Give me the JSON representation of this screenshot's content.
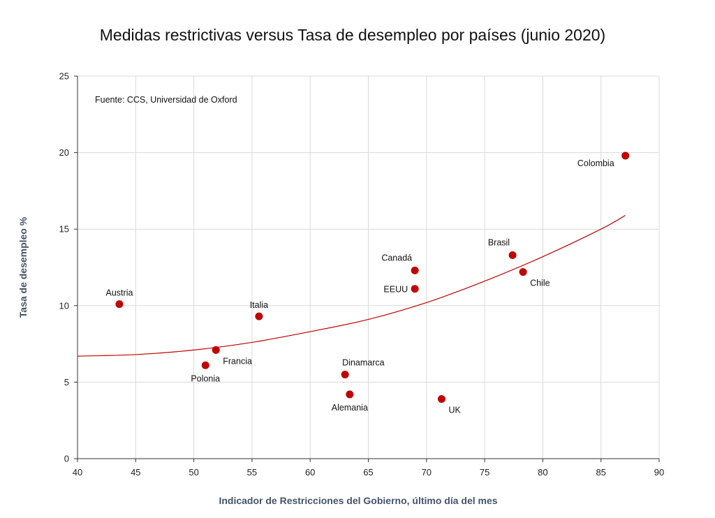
{
  "chart_data": {
    "type": "scatter",
    "title": "Medidas restrictivas versus Tasa de desempleo por países (junio 2020)",
    "xlabel": "Indicador de Restricciones del Gobierno, último día del mes",
    "ylabel": "Tasa de desempleo %",
    "annotation": "Fuente: CCS, Universidad de Oxford",
    "xlim": [
      40,
      90
    ],
    "ylim": [
      0,
      25
    ],
    "xticks": [
      "40",
      "45",
      "50",
      "55",
      "60",
      "65",
      "70",
      "75",
      "80",
      "85",
      "90"
    ],
    "yticks": [
      "0",
      "5",
      "10",
      "15",
      "20",
      "25"
    ],
    "grid": true,
    "point_color": "#c00000",
    "trend_color": "#c00000",
    "points": [
      {
        "label": "Austria",
        "x": 43.6,
        "y": 10.1,
        "label_pos": "above"
      },
      {
        "label": "Polonia",
        "x": 51.0,
        "y": 6.1,
        "label_pos": "below"
      },
      {
        "label": "Francia",
        "x": 51.9,
        "y": 7.1,
        "label_pos": "below-right"
      },
      {
        "label": "Italia",
        "x": 55.6,
        "y": 9.3,
        "label_pos": "above"
      },
      {
        "label": "Dinamarca",
        "x": 63.0,
        "y": 5.5,
        "label_pos": "above-right"
      },
      {
        "label": "Alemania",
        "x": 63.4,
        "y": 4.2,
        "label_pos": "below"
      },
      {
        "label": "Canadá",
        "x": 69.0,
        "y": 12.3,
        "label_pos": "above-left"
      },
      {
        "label": "EEUU",
        "x": 69.0,
        "y": 11.1,
        "label_pos": "left"
      },
      {
        "label": "UK",
        "x": 71.3,
        "y": 3.9,
        "label_pos": "below-right"
      },
      {
        "label": "Brasil",
        "x": 77.4,
        "y": 13.3,
        "label_pos": "above-left"
      },
      {
        "label": "Chile",
        "x": 78.3,
        "y": 12.2,
        "label_pos": "below-right"
      },
      {
        "label": "Colombia",
        "x": 87.1,
        "y": 19.8,
        "label_pos": "below-left"
      }
    ],
    "trendline": {
      "type": "polynomial",
      "x": [
        40,
        45,
        50,
        55,
        60,
        65,
        70,
        75,
        80,
        85,
        87.1
      ],
      "y": [
        6.7,
        6.8,
        7.1,
        7.6,
        8.3,
        9.1,
        10.2,
        11.6,
        13.2,
        15.0,
        15.9
      ]
    }
  }
}
